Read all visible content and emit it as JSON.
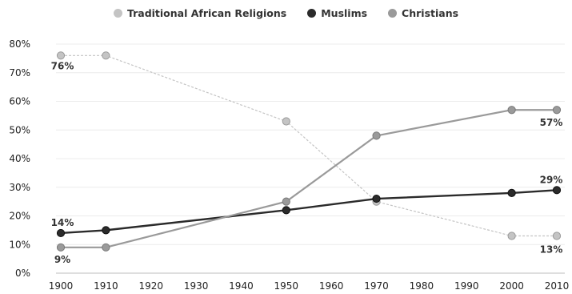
{
  "chart_data": {
    "type": "line",
    "x": [
      1900,
      1910,
      1950,
      1970,
      2000,
      2010
    ],
    "xticks": [
      "1900",
      "1910",
      "1920",
      "1930",
      "1940",
      "1950",
      "1960",
      "1970",
      "1980",
      "1990",
      "2000",
      "2010"
    ],
    "xlim": [
      1900,
      2010
    ],
    "ylim": [
      0,
      80
    ],
    "yticks": [
      "0%",
      "10%",
      "20%",
      "30%",
      "40%",
      "50%",
      "60%",
      "70%",
      "80%"
    ],
    "grid": true,
    "legend_position": "top-center",
    "series": [
      {
        "name": "Traditional African Religions",
        "color": "#c4c4c4",
        "line_style": "dashed",
        "values": [
          76,
          76,
          53,
          25,
          13,
          13
        ]
      },
      {
        "name": "Muslims",
        "color": "#2b2b2b",
        "line_style": "solid",
        "values": [
          14,
          15,
          22,
          26,
          28,
          29
        ]
      },
      {
        "name": "Christians",
        "color": "#9a9a9a",
        "line_style": "solid",
        "values": [
          9,
          9,
          25,
          48,
          57,
          57
        ]
      }
    ],
    "data_labels": [
      {
        "text": "76%",
        "series": 0,
        "index": 0
      },
      {
        "text": "14%",
        "series": 1,
        "index": 0
      },
      {
        "text": "9%",
        "series": 2,
        "index": 0
      },
      {
        "text": "57%",
        "series": 2,
        "index": 5
      },
      {
        "text": "29%",
        "series": 1,
        "index": 5
      },
      {
        "text": "13%",
        "series": 0,
        "index": 5
      }
    ]
  }
}
